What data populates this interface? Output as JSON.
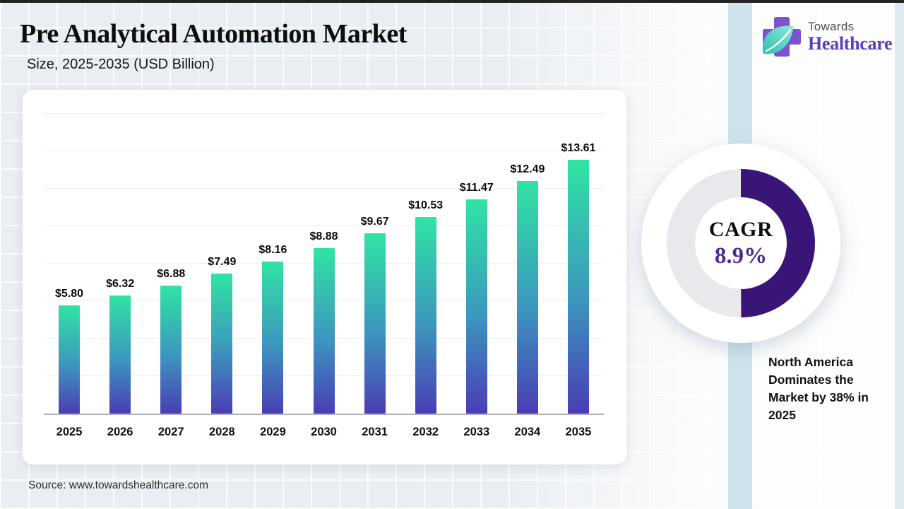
{
  "page": {
    "background_color": "#e9eef3",
    "accent_band_color": "#cfe3ed"
  },
  "header": {
    "title": "Pre Analytical Automation Market",
    "subtitle": "Size, 2025-2035 (USD Billion)"
  },
  "logo": {
    "top": "Towards",
    "bottom": "Healthcare",
    "cross_color": "#7D51CF",
    "leaf_color_light": "#8FE9D6",
    "leaf_color_dark": "#2BBFB4",
    "wordmark_color": "#5A3CBE"
  },
  "chart_data": {
    "type": "bar",
    "title": "Pre Analytical Automation Market Size, 2025-2035 (USD Billion)",
    "categories": [
      "2025",
      "2026",
      "2027",
      "2028",
      "2029",
      "2030",
      "2031",
      "2032",
      "2033",
      "2034",
      "2035"
    ],
    "values": [
      5.8,
      6.32,
      6.88,
      7.49,
      8.16,
      8.88,
      9.67,
      10.53,
      11.47,
      12.49,
      13.61
    ],
    "value_labels": [
      "$5.80",
      "$6.32",
      "$6.88",
      "$7.49",
      "$8.16",
      "$8.88",
      "$9.67",
      "$10.53",
      "$11.47",
      "$12.49",
      "$13.61"
    ],
    "xlabel": "",
    "ylabel": "",
    "ylim": [
      0,
      14
    ],
    "grid": "horizontal-light",
    "legend": "none",
    "bar_gradient_top": "#30E4A4",
    "bar_gradient_mid": "#3C96BE",
    "bar_gradient_bottom": "#4A3DB5"
  },
  "cagr": {
    "label": "CAGR",
    "value": "8.9%",
    "arc_color": "#3A1578",
    "track_color": "#EAE8EC",
    "value_color": "#4B2D91",
    "fraction": 0.5
  },
  "callout": {
    "text": "North America Dominates the Market by 38% in 2025"
  },
  "source": {
    "text": "Source: www.towardshealthcare.com"
  }
}
